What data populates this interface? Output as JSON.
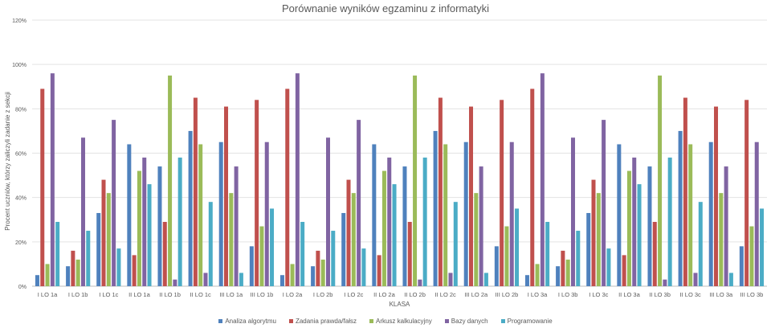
{
  "chart_data": {
    "type": "bar",
    "title": "Porównanie wyników egzaminu z informatyki",
    "xlabel": "KLASA",
    "ylabel": "Procent uczniów, którzy zaliczyli zadanie z sekcji",
    "ylim": [
      0,
      120
    ],
    "yticks": [
      "0%",
      "20%",
      "40%",
      "60%",
      "80%",
      "100%",
      "120%"
    ],
    "grid": true,
    "legend": "bottom",
    "categories": [
      "I LO 1a",
      "I LO 1b",
      "I LO 1c",
      "II LO 1a",
      "II LO 1b",
      "II LO 1c",
      "III LO 1a",
      "III LO 1b",
      "I LO 2a",
      "I LO 2b",
      "I LO 2c",
      "II LO 2a",
      "II LO 2b",
      "II LO 2c",
      "III LO 2a",
      "III LO 2b",
      "I LO 3a",
      "I LO 3b",
      "I LO 3c",
      "II LO 3a",
      "II LO 3b",
      "II LO 3c",
      "III LO 3a",
      "III LO 3b"
    ],
    "series": [
      {
        "name": "Analiza algorytmu",
        "color": "#4F81BD",
        "values": [
          5,
          9,
          33,
          64,
          54,
          70,
          65,
          18,
          5,
          9,
          33,
          64,
          54,
          70,
          65,
          18,
          5,
          9,
          33,
          64,
          54,
          70,
          65,
          18
        ]
      },
      {
        "name": "Zadania prawda/fałsz",
        "color": "#C0504D",
        "values": [
          89,
          16,
          48,
          14,
          29,
          85,
          81,
          84,
          89,
          16,
          48,
          14,
          29,
          85,
          81,
          84,
          89,
          16,
          48,
          14,
          29,
          85,
          81,
          84
        ]
      },
      {
        "name": "Arkusz kalkulacyjny",
        "color": "#9BBB59",
        "values": [
          10,
          12,
          42,
          52,
          95,
          64,
          42,
          27,
          10,
          12,
          42,
          52,
          95,
          64,
          42,
          27,
          10,
          12,
          42,
          52,
          95,
          64,
          42,
          27
        ]
      },
      {
        "name": "Bazy danych",
        "color": "#8064A2",
        "values": [
          96,
          67,
          75,
          58,
          3,
          6,
          54,
          65,
          96,
          67,
          75,
          58,
          3,
          6,
          54,
          65,
          96,
          67,
          75,
          58,
          3,
          6,
          54,
          65
        ]
      },
      {
        "name": "Programowanie",
        "color": "#4BACC6",
        "values": [
          29,
          25,
          17,
          46,
          58,
          38,
          6,
          35,
          29,
          25,
          17,
          46,
          58,
          38,
          6,
          35,
          29,
          25,
          17,
          46,
          58,
          38,
          6,
          35
        ]
      }
    ]
  }
}
